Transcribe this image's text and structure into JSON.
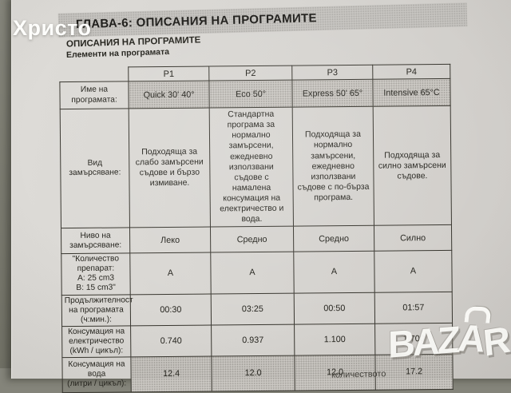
{
  "photo_overlay": {
    "top_left_watermark": "Христо",
    "bazar_logo": {
      "part1": "BAZ",
      "part2": "A",
      "part3": "R"
    }
  },
  "document": {
    "chapter_heading": "ГЛАВА-6:  ОПИСАНИЯ НА ПРОГРАМИТЕ",
    "section_title": "ОПИСАНИЯ НА ПРОГРАМИТЕ",
    "section_subtitle": "Елементи на програмата",
    "footnote_fragment": "количеството",
    "table": {
      "column_headers": [
        "P1",
        "P2",
        "P3",
        "P4"
      ],
      "rows": [
        {
          "label": "Име на програмата:",
          "values": [
            "Quick 30' 40°",
            "Eco 50°",
            "Express 50' 65°",
            "Intensive 65°C"
          ],
          "shaded": true
        },
        {
          "label": "Вид замърсяване:",
          "values": [
            "Подходяща за слабо замърсени съдове и бързо измиване.",
            "Стандартна програма за нормално замърсени, ежедневно използвани съдове с намалена консумация на електричество и вода.",
            "Подходяща за нормално замърсени, ежедневно използвани съдове с по-бърза програма.",
            "Подходяща за силно замърсени съдове."
          ],
          "shaded": false
        },
        {
          "label": "Ниво на\nзамърсяване:",
          "values": [
            "Леко",
            "Средно",
            "Средно",
            "Силно"
          ],
          "shaded": false
        },
        {
          "label": "\"Количество\nпрепарат:\nA: 25 cm3\nB: 15 cm3\"",
          "values": [
            "A",
            "A",
            "A",
            "A"
          ],
          "shaded": false
        },
        {
          "label": "Продължителност\nна програмата\n(ч:мин.):",
          "values": [
            "00:30",
            "03:25",
            "00:50",
            "01:57"
          ],
          "shaded": false
        },
        {
          "label": "Консумация на\nелектричество\n(kWh / цикъл):",
          "values": [
            "0.740",
            "0.937",
            "1.100",
            "1.700"
          ],
          "shaded": false
        },
        {
          "label": "Консумация на\nвода\n(литри / цикъл):",
          "values": [
            "12.4",
            "12.0",
            "12.0",
            "17.2"
          ],
          "shaded": true
        }
      ]
    }
  },
  "colors": {
    "paper": "#d7d5d1",
    "shade_cell": "#cbc8c3",
    "heading_bar": "#c6c4c0",
    "ink": "#26251f",
    "backdrop": "#76766b",
    "watermark_white": "#fcfcf9"
  }
}
